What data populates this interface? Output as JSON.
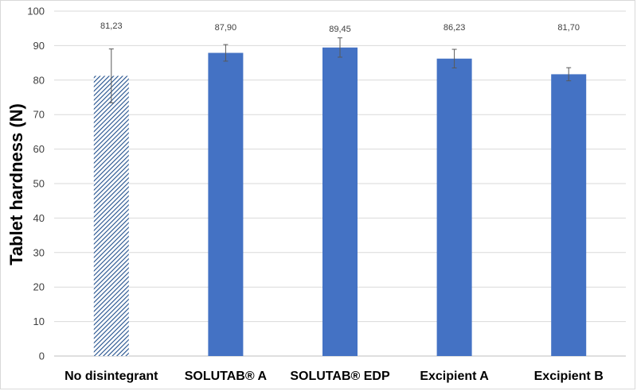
{
  "chart_data": {
    "type": "bar",
    "title": "",
    "xlabel": "",
    "ylabel": "Tablet hardness (N)",
    "ylim": [
      0,
      100
    ],
    "yticks": [
      "0",
      "10",
      "20",
      "30",
      "40",
      "50",
      "60",
      "70",
      "80",
      "90",
      "100"
    ],
    "grid": true,
    "categories": [
      "No disintegrant",
      "SOLUTAB® A",
      "SOLUTAB® EDP",
      "Excipient A",
      "Excipient B"
    ],
    "values": [
      81.23,
      87.9,
      89.45,
      86.23,
      81.7
    ],
    "value_labels": [
      "81,23",
      "87,90",
      "89,45",
      "86,23",
      "81,70"
    ],
    "error": [
      7.8,
      2.4,
      2.8,
      2.7,
      1.9
    ],
    "bar_styles": [
      "hatched",
      "solid",
      "solid",
      "solid",
      "solid"
    ],
    "colors": {
      "bar": "#4472c4",
      "hatch": "#1f4e8c",
      "grid": "#d9d9d9",
      "error": "#595959"
    }
  }
}
